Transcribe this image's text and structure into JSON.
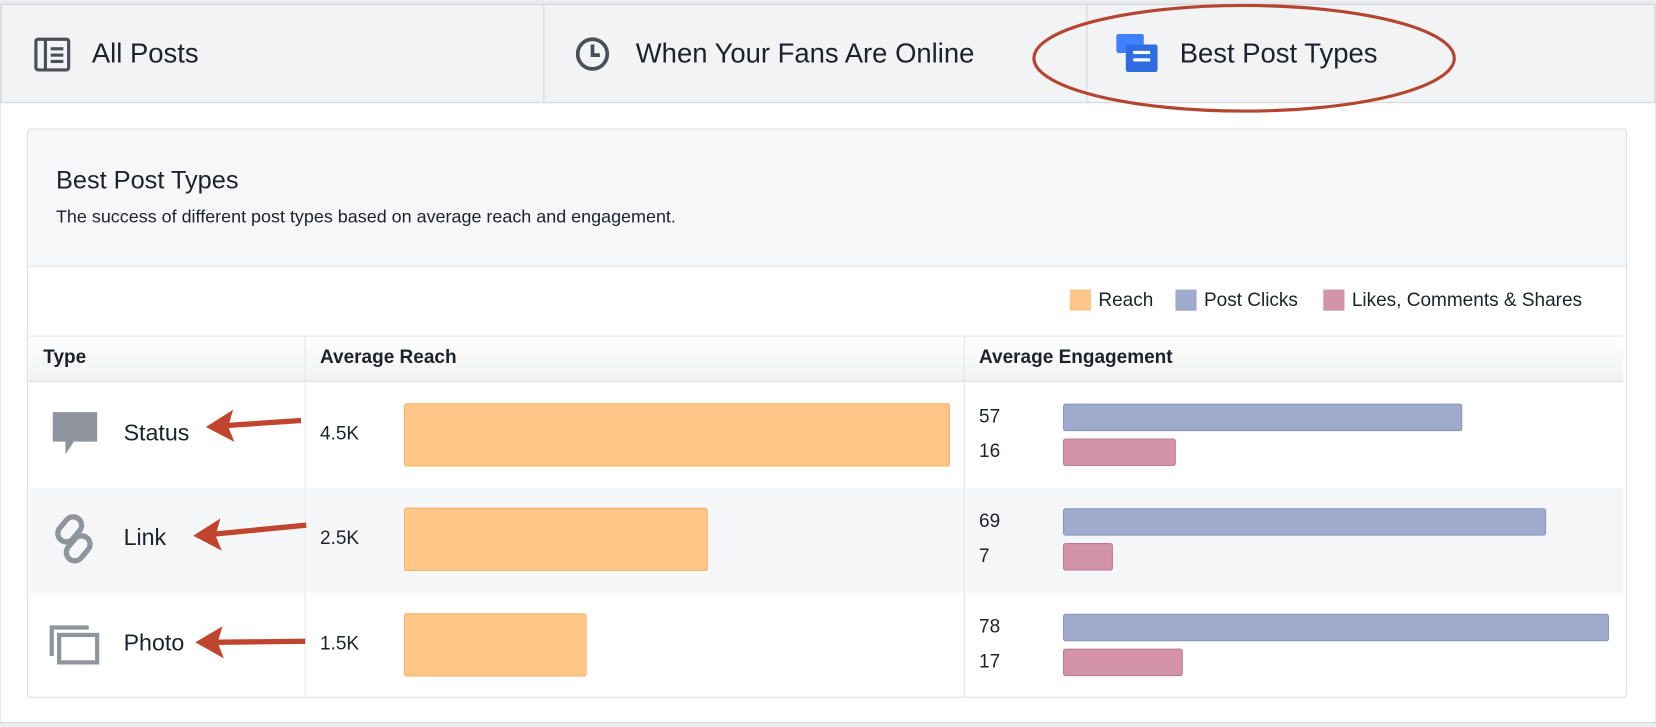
{
  "tabs": [
    "All Posts",
    "When Your Fans Are Online",
    "Best Post Types"
  ],
  "panel": {
    "title": "Best Post Types",
    "subtitle": "The success of different post types based on average reach and engagement."
  },
  "columns": [
    "Type",
    "Average Reach",
    "Average Engagement"
  ],
  "chart_data": {
    "type": "bar",
    "categories": [
      "Status",
      "Link",
      "Photo"
    ],
    "series": [
      {
        "name": "Reach",
        "color": "#ffc687",
        "values": [
          4500,
          2500,
          1500
        ],
        "value_labels": [
          "4.5K",
          "2.5K",
          "1.5K"
        ]
      },
      {
        "name": "Post Clicks",
        "color": "#9eabcd",
        "values": [
          57,
          69,
          78
        ]
      },
      {
        "name": "Likes, Comments & Shares",
        "color": "#d393a8",
        "values": [
          16,
          7,
          17
        ]
      }
    ]
  }
}
